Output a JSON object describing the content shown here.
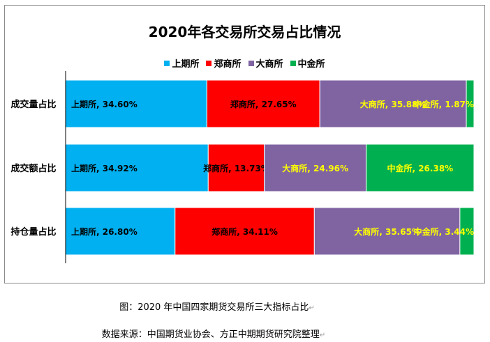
{
  "chart_data": {
    "type": "bar",
    "orientation": "horizontal",
    "stacked": "percent",
    "title": "2020年各交易所交易占比情况",
    "categories": [
      "成交量占比",
      "成交额占比",
      "持仓量占比"
    ],
    "series": [
      {
        "name": "上期所",
        "color": "#00b0f0",
        "label_color": "#000000",
        "values": [
          34.6,
          34.92,
          26.8
        ]
      },
      {
        "name": "郑商所",
        "color": "#ff0000",
        "label_color": "#000000",
        "values": [
          27.65,
          13.73,
          34.11
        ]
      },
      {
        "name": "大商所",
        "color": "#8064a2",
        "label_color": "#ffff00",
        "values": [
          35.88,
          24.96,
          35.65
        ]
      },
      {
        "name": "中金所",
        "color": "#00b050",
        "label_color": "#ffff00",
        "values": [
          1.87,
          26.38,
          3.44
        ]
      }
    ],
    "data_labels": [
      [
        "上期所, 34.60%",
        "郑商所, 27.65%",
        "大商所, 35.88%",
        "中金所, 1.87%"
      ],
      [
        "上期所, 34.92%",
        "郑商所, 13.73%",
        "大商所, 24.96%",
        "中金所, 26.38%"
      ],
      [
        "上期所, 26.80%",
        "郑商所, 34.11%",
        "大商所, 35.65%",
        "中金所, 3.44%"
      ]
    ],
    "legend_position": "top",
    "grid": false
  },
  "captions": {
    "figure": "图：2020 年中国四家期货交易所三大指标占比",
    "source": "数据来源：中国期货业协会、方正中期期货研究院整理"
  },
  "marks": {
    "return": "↵"
  }
}
